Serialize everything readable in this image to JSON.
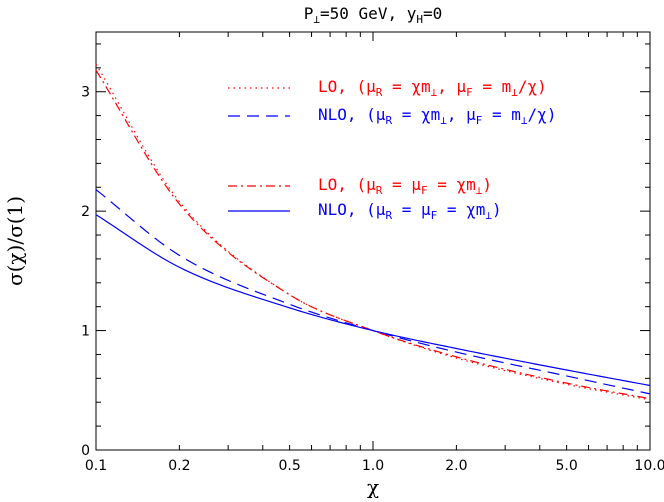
{
  "chart_data": {
    "type": "line",
    "title": "P⊥=50 GeV, yH=0",
    "title_parts": {
      "a": "P",
      "a_sub": "⊥",
      "b": "=50 GeV, y",
      "b_sub": "H",
      "c": "=0"
    },
    "xlabel": "χ",
    "ylabel": "σ(χ)/σ(1)",
    "x_scale": "log",
    "xlim": [
      0.1,
      10.0
    ],
    "ylim": [
      0,
      3.5
    ],
    "x_ticks": [
      0.1,
      0.2,
      0.5,
      1.0,
      2.0,
      5.0,
      10.0
    ],
    "x_tick_labels": [
      "0.1",
      "0.2",
      "0.5",
      "1.0",
      "2.0",
      "5.0",
      "10.0"
    ],
    "y_ticks": [
      0,
      1,
      2,
      3
    ],
    "y_tick_labels": [
      "0",
      "1",
      "2",
      "3"
    ],
    "legend_placement": "top-right",
    "series": [
      {
        "name": "LO, (μR = χm⊥, μF = m⊥/χ)",
        "color": "#ff0000",
        "dash": "dotted",
        "x": [
          0.1,
          0.2,
          0.5,
          1.0,
          2.0,
          5.0,
          10.0
        ],
        "y": [
          3.23,
          2.08,
          1.3,
          1.0,
          0.77,
          0.55,
          0.42
        ]
      },
      {
        "name": "NLO, (μR = χm⊥, μF = m⊥/χ)",
        "color": "#0000ff",
        "dash": "dashed",
        "x": [
          0.1,
          0.2,
          0.5,
          1.0,
          2.0,
          5.0,
          10.0
        ],
        "y": [
          2.18,
          1.63,
          1.22,
          1.0,
          0.82,
          0.62,
          0.47
        ]
      },
      {
        "name": "LO, (μR = μF = χm⊥)",
        "color": "#ff0000",
        "dash": "dashdot",
        "x": [
          0.1,
          0.2,
          0.5,
          1.0,
          2.0,
          5.0,
          10.0
        ],
        "y": [
          3.18,
          2.06,
          1.3,
          1.0,
          0.78,
          0.56,
          0.43
        ]
      },
      {
        "name": "NLO, (μR = μF = χm⊥)",
        "color": "#0000ff",
        "dash": "solid",
        "x": [
          0.1,
          0.2,
          0.5,
          1.0,
          2.0,
          5.0,
          10.0
        ],
        "y": [
          1.97,
          1.53,
          1.19,
          1.0,
          0.85,
          0.67,
          0.54
        ]
      }
    ],
    "legend": [
      {
        "pre": "LO,  (μ",
        "s1": "R",
        "mid1": " = χm",
        "s2": "⊥",
        "mid2": ", μ",
        "s3": "F",
        "mid3": " = m",
        "s4": "⊥",
        "post": "/χ)"
      },
      {
        "pre": "NLO,  (μ",
        "s1": "R",
        "mid1": " = χm",
        "s2": "⊥",
        "mid2": ", μ",
        "s3": "F",
        "mid3": " = m",
        "s4": "⊥",
        "post": "/χ)"
      },
      {
        "pre": "LO,  (μ",
        "s1": "R",
        "mid1": " = μ",
        "s2": "F",
        "mid2": " = χm",
        "s3": "⊥",
        "mid3": ")",
        "s4": "",
        "post": ""
      },
      {
        "pre": "NLO,  (μ",
        "s1": "R",
        "mid1": " = μ",
        "s2": "F",
        "mid2": " = χm",
        "s3": "⊥",
        "mid3": ")",
        "s4": "",
        "post": ""
      }
    ]
  }
}
